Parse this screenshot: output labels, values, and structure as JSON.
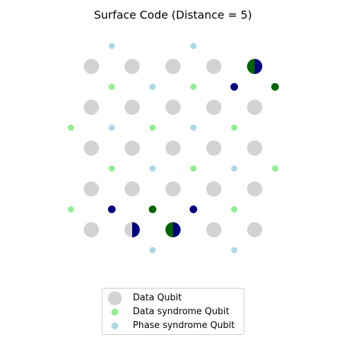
{
  "title": "Surface Code (Distance = 5)",
  "colors": {
    "data_qubit": "#d3d3d3",
    "data_syndrome": "#90ee90",
    "phase_syndrome": "#add8e6",
    "x_error": "#006400",
    "z_error": "#000080"
  },
  "data_qubits": [
    {
      "row": 0,
      "col": 0,
      "error": "none"
    },
    {
      "row": 0,
      "col": 1,
      "error": "none"
    },
    {
      "row": 0,
      "col": 2,
      "error": "none"
    },
    {
      "row": 0,
      "col": 3,
      "error": "none"
    },
    {
      "row": 0,
      "col": 4,
      "error": "XZ"
    },
    {
      "row": 1,
      "col": 0,
      "error": "none"
    },
    {
      "row": 1,
      "col": 1,
      "error": "none"
    },
    {
      "row": 1,
      "col": 2,
      "error": "none"
    },
    {
      "row": 1,
      "col": 3,
      "error": "none"
    },
    {
      "row": 1,
      "col": 4,
      "error": "none"
    },
    {
      "row": 2,
      "col": 0,
      "error": "none"
    },
    {
      "row": 2,
      "col": 1,
      "error": "none"
    },
    {
      "row": 2,
      "col": 2,
      "error": "none"
    },
    {
      "row": 2,
      "col": 3,
      "error": "none"
    },
    {
      "row": 2,
      "col": 4,
      "error": "none"
    },
    {
      "row": 3,
      "col": 0,
      "error": "none"
    },
    {
      "row": 3,
      "col": 1,
      "error": "none"
    },
    {
      "row": 3,
      "col": 2,
      "error": "none"
    },
    {
      "row": 3,
      "col": 3,
      "error": "none"
    },
    {
      "row": 3,
      "col": 4,
      "error": "none"
    },
    {
      "row": 4,
      "col": 0,
      "error": "none"
    },
    {
      "row": 4,
      "col": 1,
      "error": "Z"
    },
    {
      "row": 4,
      "col": 2,
      "error": "XZ"
    },
    {
      "row": 4,
      "col": 3,
      "error": "none"
    },
    {
      "row": 4,
      "col": 4,
      "error": "none"
    }
  ],
  "syndrome_qubits": [
    {
      "row": -0.5,
      "col": 0.5,
      "kind": "phase",
      "state": "idle"
    },
    {
      "row": -0.5,
      "col": 2.5,
      "kind": "phase",
      "state": "idle"
    },
    {
      "row": 0.5,
      "col": 0.5,
      "kind": "data",
      "state": "idle"
    },
    {
      "row": 0.5,
      "col": 1.5,
      "kind": "phase",
      "state": "idle"
    },
    {
      "row": 0.5,
      "col": 2.5,
      "kind": "data",
      "state": "idle"
    },
    {
      "row": 0.5,
      "col": 3.5,
      "kind": "phase",
      "state": "triggered"
    },
    {
      "row": 0.5,
      "col": 4.5,
      "kind": "data",
      "state": "triggered"
    },
    {
      "row": 1.5,
      "col": -0.5,
      "kind": "data",
      "state": "idle"
    },
    {
      "row": 1.5,
      "col": 0.5,
      "kind": "phase",
      "state": "idle"
    },
    {
      "row": 1.5,
      "col": 1.5,
      "kind": "data",
      "state": "idle"
    },
    {
      "row": 1.5,
      "col": 2.5,
      "kind": "phase",
      "state": "idle"
    },
    {
      "row": 1.5,
      "col": 3.5,
      "kind": "data",
      "state": "idle"
    },
    {
      "row": 2.5,
      "col": 0.5,
      "kind": "data",
      "state": "idle"
    },
    {
      "row": 2.5,
      "col": 1.5,
      "kind": "phase",
      "state": "idle"
    },
    {
      "row": 2.5,
      "col": 2.5,
      "kind": "data",
      "state": "idle"
    },
    {
      "row": 2.5,
      "col": 3.5,
      "kind": "phase",
      "state": "idle"
    },
    {
      "row": 2.5,
      "col": 4.5,
      "kind": "data",
      "state": "idle"
    },
    {
      "row": 3.5,
      "col": -0.5,
      "kind": "data",
      "state": "idle"
    },
    {
      "row": 3.5,
      "col": 0.5,
      "kind": "phase",
      "state": "triggered"
    },
    {
      "row": 3.5,
      "col": 1.5,
      "kind": "data",
      "state": "triggered"
    },
    {
      "row": 3.5,
      "col": 2.5,
      "kind": "phase",
      "state": "triggered"
    },
    {
      "row": 3.5,
      "col": 3.5,
      "kind": "data",
      "state": "idle"
    },
    {
      "row": 4.5,
      "col": 1.5,
      "kind": "phase",
      "state": "idle"
    },
    {
      "row": 4.5,
      "col": 3.5,
      "kind": "phase",
      "state": "idle"
    }
  ],
  "legend": [
    {
      "key": "data_qubit",
      "label": "Data Qubit"
    },
    {
      "key": "data_syndrome",
      "label": "Data syndrome Qubit"
    },
    {
      "key": "phase_syndrome",
      "label": "Phase syndrome Qubit"
    }
  ]
}
